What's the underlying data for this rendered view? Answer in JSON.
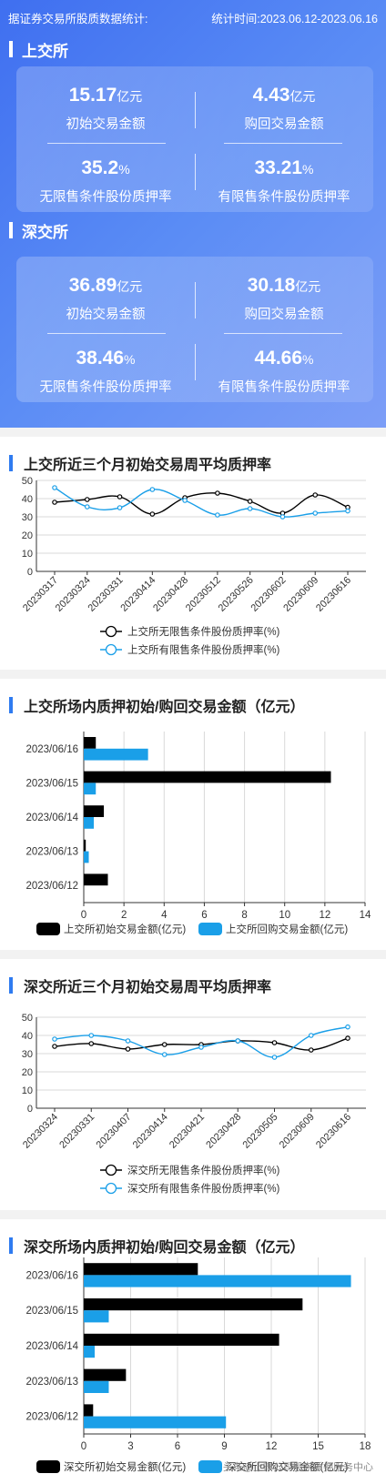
{
  "header": {
    "left": "据证券交易所股质数据统计:",
    "right": "统计时间:2023.06.12-2023.06.16"
  },
  "sse": {
    "title": "上交所",
    "initial": {
      "value": "15.17",
      "unit": "亿元",
      "label": "初始交易金额"
    },
    "buyback": {
      "value": "4.43",
      "unit": "亿元",
      "label": "购回交易金额"
    },
    "unrestricted": {
      "value": "35.2",
      "unit": "%",
      "label": "无限售条件股份质押率"
    },
    "restricted": {
      "value": "33.21",
      "unit": "%",
      "label": "有限售条件股份质押率"
    }
  },
  "szse": {
    "title": "深交所",
    "initial": {
      "value": "36.89",
      "unit": "亿元",
      "label": "初始交易金额"
    },
    "buyback": {
      "value": "30.18",
      "unit": "亿元",
      "label": "购回交易金额"
    },
    "unrestricted": {
      "value": "38.46",
      "unit": "%",
      "label": "无限售条件股份质押率"
    },
    "restricted": {
      "value": "44.66",
      "unit": "%",
      "label": "有限售条件股份质押率"
    }
  },
  "colors": {
    "black": "#000000",
    "blue": "#1a9fe8",
    "accent": "#2f7bf0"
  },
  "watermark": "头条@上市公司股东质押服务中心",
  "chart_data": [
    {
      "type": "line",
      "title": "上交所近三个月初始交易周平均质押率",
      "x": [
        "20230317",
        "20230324",
        "20230331",
        "20230414",
        "20230428",
        "20230512",
        "20230526",
        "20230602",
        "20230609",
        "20230616"
      ],
      "ylim": [
        0,
        50
      ],
      "yticks": [
        0,
        10,
        20,
        30,
        40,
        50
      ],
      "series": [
        {
          "name": "上交所无限售条件股份质押率(%)",
          "values": [
            38,
            39.5,
            41,
            31.5,
            40.5,
            43,
            38.5,
            32,
            42,
            35.2
          ]
        },
        {
          "name": "上交所有限售条件股份质押率(%)",
          "values": [
            46,
            35.5,
            35,
            45,
            39,
            31,
            34.5,
            30,
            32,
            33.21
          ]
        }
      ],
      "legend": "bottom",
      "grid": true
    },
    {
      "type": "bar",
      "orientation": "horizontal",
      "title": "上交所场内质押初始/购回交易金额（亿元）",
      "categories": [
        "2023/06/16",
        "2023/06/15",
        "2023/06/14",
        "2023/06/13",
        "2023/06/12"
      ],
      "xlim": [
        0,
        14
      ],
      "xticks": [
        0,
        2,
        4,
        6,
        8,
        10,
        12,
        14
      ],
      "series": [
        {
          "name": "上交所初始交易金额(亿元)",
          "values": [
            0.6,
            12.3,
            1.0,
            0.1,
            1.2
          ]
        },
        {
          "name": "上交所回购交易金额(亿元)",
          "values": [
            3.2,
            0.6,
            0.5,
            0.25,
            0
          ]
        }
      ],
      "legend": "bottom",
      "grid": true
    },
    {
      "type": "line",
      "title": "深交所近三个月初始交易周平均质押率",
      "x": [
        "20230324",
        "20230331",
        "20230407",
        "20230414",
        "20230421",
        "20230428",
        "20230505",
        "20230609",
        "20230616"
      ],
      "ylim": [
        0,
        50
      ],
      "yticks": [
        0,
        10,
        20,
        30,
        40,
        50
      ],
      "series": [
        {
          "name": "深交所无限售条件股份质押率(%)",
          "values": [
            34,
            35.5,
            32.5,
            35,
            35,
            37,
            36,
            32,
            38.46
          ]
        },
        {
          "name": "深交所有限售条件股份质押率(%)",
          "values": [
            38,
            40,
            37,
            29.5,
            33.5,
            37,
            28,
            40,
            44.66
          ]
        }
      ],
      "legend": "bottom",
      "grid": true
    },
    {
      "type": "bar",
      "orientation": "horizontal",
      "title": "深交所场内质押初始/购回交易金额（亿元）",
      "categories": [
        "2023/06/16",
        "2023/06/15",
        "2023/06/14",
        "2023/06/13",
        "2023/06/12"
      ],
      "xlim": [
        0,
        18
      ],
      "xticks": [
        0,
        3,
        6,
        9,
        12,
        15,
        18
      ],
      "series": [
        {
          "name": "深交所初始交易金额(亿元)",
          "values": [
            7.3,
            14.0,
            12.5,
            2.7,
            0.6
          ]
        },
        {
          "name": "深交所回购交易金额(亿元)",
          "values": [
            17.1,
            1.6,
            0.7,
            1.6,
            9.1
          ]
        }
      ],
      "legend": "bottom",
      "grid": true
    }
  ]
}
